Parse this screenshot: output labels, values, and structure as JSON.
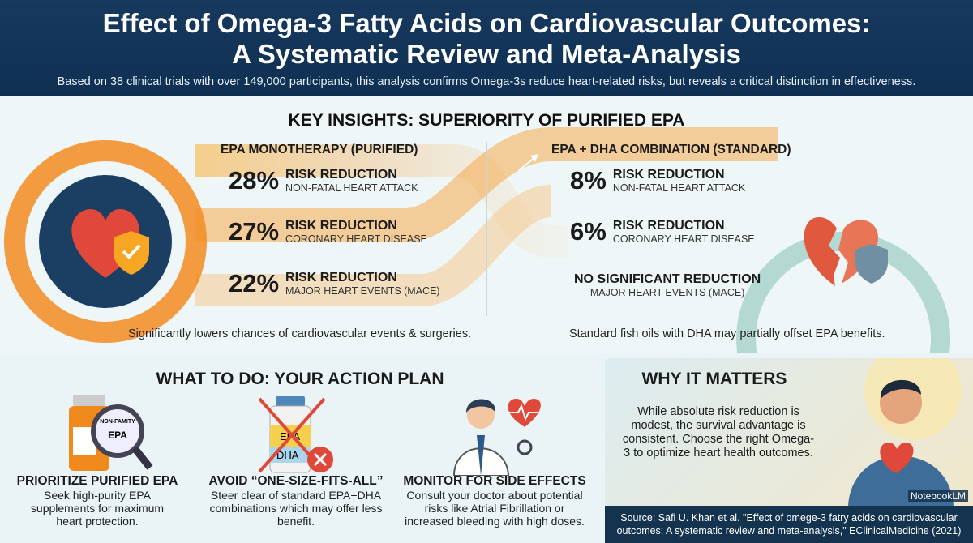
{
  "header": {
    "title_line1": "Effect of Omega-3 Fatty Acids on Cardiovascular Outcomes:",
    "title_line2": "A Systematic Review and Meta-Analysis",
    "subtitle": "Based on 38 clinical trials with over 149,000 participants, this analysis confirms Omega-3s reduce heart-related risks, but reveals a critical distinction in effectiveness."
  },
  "insights": {
    "title": "KEY INSIGHTS: SUPERIORITY OF PURIFIED EPA",
    "epa": {
      "heading": "EPA MONOTHERAPY (PURIFIED)",
      "rows": [
        {
          "pct": "28%",
          "label": "RISK REDUCTION",
          "outcome": "NON-FATAL HEART ATTACK"
        },
        {
          "pct": "27%",
          "label": "RISK REDUCTION",
          "outcome": "CORONARY HEART DISEASE"
        },
        {
          "pct": "22%",
          "label": "RISK REDUCTION",
          "outcome": "MAJOR HEART EVENTS (MACE)"
        }
      ],
      "caption": "Significantly lowers chances of cardiovascular events & surgeries."
    },
    "combo": {
      "heading": "EPA + DHA COMBINATION (STANDARD)",
      "rows": [
        {
          "pct": "8%",
          "label": "RISK REDUCTION",
          "outcome": "NON-FATAL HEART ATTACK"
        },
        {
          "pct": "6%",
          "label": "RISK REDUCTION",
          "outcome": "CORONARY HEART DISEASE"
        },
        {
          "pct": "",
          "label": "NO SIGNIFICANT REDUCTION",
          "outcome": "MAJOR HEART EVENTS (MACE)"
        }
      ],
      "caption": "Standard fish oils with DHA may partially offset EPA benefits."
    }
  },
  "action": {
    "title": "WHAT TO DO: YOUR ACTION PLAN",
    "items": [
      {
        "title": "PRIORITIZE PURIFIED EPA",
        "text": "Seek high-purity EPA supplements for maximum heart protection.",
        "icon_label": "EPA",
        "icon_small": "NON-FAMITY"
      },
      {
        "title": "AVOID “ONE-SIZE-FITS-ALL”",
        "text": "Steer clear of standard EPA+DHA combinations which may offer less benefit.",
        "icon_label": "EPA",
        "icon_label2": "DHA"
      },
      {
        "title": "MONITOR FOR SIDE EFFECTS",
        "text": "Consult your doctor about potential risks like Atrial Fibrillation or increased bleeding with high doses."
      }
    ]
  },
  "why": {
    "title": "WHY IT MATTERS",
    "text": "While absolute risk reduction is modest, the survival advantage is consistent. Choose the right Omega-3 to optimize heart health outcomes.",
    "source": "Source: Safi U. Khan et al. \"Effect of omege-3 fatry acids on cardiovascular outcomes: A systematic review and meta-analysis,\" EClinicalMedicine (2021)",
    "watermark": "NotebookLM"
  },
  "colors": {
    "navy": "#14334f",
    "orange": "#f08a1c",
    "teal": "#5fb5c4",
    "red": "#e0483a"
  }
}
